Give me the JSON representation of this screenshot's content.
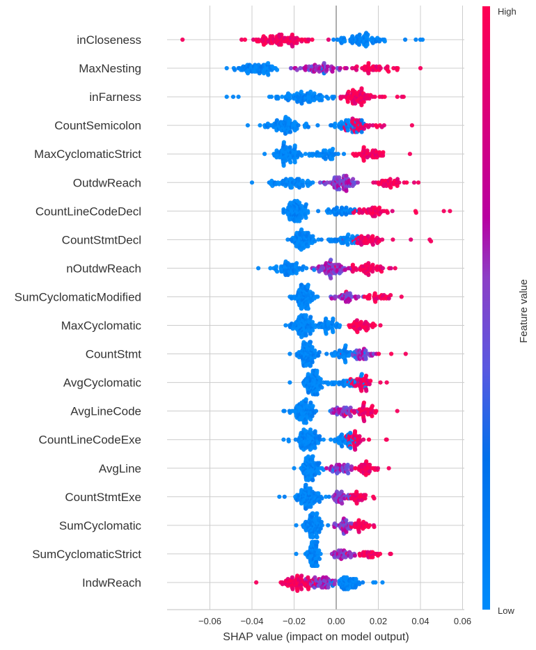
{
  "chart_data": {
    "type": "scatter",
    "subtype": "shap-beeswarm-summary",
    "title": "",
    "xlabel": "SHAP value (impact on model output)",
    "ylabel": "",
    "xlim": [
      -0.08,
      0.06
    ],
    "xticks": [
      -0.06,
      -0.04,
      -0.02,
      0.0,
      0.02,
      0.04,
      0.06
    ],
    "xtick_labels": [
      "−0.06",
      "−0.04",
      "−0.02",
      "0.00",
      "0.02",
      "0.04",
      "0.06"
    ],
    "grid": true,
    "colorbar": {
      "title": "Feature value",
      "high_label": "High",
      "low_label": "Low",
      "high_color": "#ff0052",
      "mid_color": "#b800a0",
      "low_color": "#008bfb",
      "placement": "right"
    },
    "features": [
      {
        "name": "inCloseness",
        "min": -0.073,
        "max": 0.041,
        "clusters": [
          {
            "center": -0.026,
            "spread": 0.012,
            "n": 90,
            "color": "high"
          },
          {
            "center": 0.011,
            "spread": 0.01,
            "n": 70,
            "color": "low"
          }
        ],
        "direction": "negative"
      },
      {
        "name": "MaxNesting",
        "min": -0.052,
        "max": 0.04,
        "clusters": [
          {
            "center": -0.037,
            "spread": 0.008,
            "n": 70,
            "color": "low"
          },
          {
            "center": -0.008,
            "spread": 0.012,
            "n": 50,
            "color": "mid"
          },
          {
            "center": 0.018,
            "spread": 0.012,
            "n": 40,
            "color": "high"
          }
        ],
        "direction": "positive"
      },
      {
        "name": "inFarness",
        "min": -0.052,
        "max": 0.032,
        "clusters": [
          {
            "center": -0.015,
            "spread": 0.012,
            "n": 80,
            "color": "low"
          },
          {
            "center": 0.01,
            "spread": 0.008,
            "n": 70,
            "color": "high"
          }
        ],
        "direction": "positive"
      },
      {
        "name": "CountSemicolon",
        "min": -0.042,
        "max": 0.036,
        "clusters": [
          {
            "center": -0.024,
            "spread": 0.008,
            "n": 80,
            "color": "low"
          },
          {
            "center": 0.005,
            "spread": 0.008,
            "n": 40,
            "color": "low"
          },
          {
            "center": 0.012,
            "spread": 0.006,
            "n": 40,
            "color": "high"
          }
        ],
        "direction": "positive"
      },
      {
        "name": "MaxCyclomaticStrict",
        "min": -0.034,
        "max": 0.035,
        "clusters": [
          {
            "center": -0.023,
            "spread": 0.006,
            "n": 80,
            "color": "low"
          },
          {
            "center": -0.005,
            "spread": 0.008,
            "n": 40,
            "color": "low"
          },
          {
            "center": 0.015,
            "spread": 0.008,
            "n": 45,
            "color": "high"
          }
        ],
        "direction": "positive"
      },
      {
        "name": "OutdwReach",
        "min": -0.04,
        "max": 0.039,
        "clusters": [
          {
            "center": -0.022,
            "spread": 0.009,
            "n": 60,
            "color": "low"
          },
          {
            "center": 0.002,
            "spread": 0.008,
            "n": 70,
            "color": "mid"
          },
          {
            "center": 0.025,
            "spread": 0.008,
            "n": 35,
            "color": "high"
          }
        ],
        "direction": "positive"
      },
      {
        "name": "CountLineCodeDecl",
        "min": -0.025,
        "max": 0.054,
        "clusters": [
          {
            "center": -0.019,
            "spread": 0.005,
            "n": 90,
            "color": "low"
          },
          {
            "center": 0.003,
            "spread": 0.008,
            "n": 40,
            "color": "low"
          },
          {
            "center": 0.018,
            "spread": 0.007,
            "n": 40,
            "color": "high"
          }
        ],
        "direction": "positive"
      },
      {
        "name": "CountStmtDecl",
        "min": -0.023,
        "max": 0.045,
        "clusters": [
          {
            "center": -0.016,
            "spread": 0.005,
            "n": 80,
            "color": "low"
          },
          {
            "center": 0.003,
            "spread": 0.008,
            "n": 40,
            "color": "low"
          },
          {
            "center": 0.015,
            "spread": 0.006,
            "n": 40,
            "color": "high"
          }
        ],
        "direction": "positive"
      },
      {
        "name": "nOutdwReach",
        "min": -0.037,
        "max": 0.028,
        "clusters": [
          {
            "center": -0.022,
            "spread": 0.007,
            "n": 60,
            "color": "low"
          },
          {
            "center": -0.002,
            "spread": 0.007,
            "n": 70,
            "color": "mid"
          },
          {
            "center": 0.015,
            "spread": 0.007,
            "n": 45,
            "color": "high"
          }
        ],
        "direction": "positive"
      },
      {
        "name": "SumCyclomaticModified",
        "min": -0.022,
        "max": 0.031,
        "clusters": [
          {
            "center": -0.015,
            "spread": 0.004,
            "n": 90,
            "color": "low"
          },
          {
            "center": 0.005,
            "spread": 0.007,
            "n": 35,
            "color": "mid"
          },
          {
            "center": 0.02,
            "spread": 0.006,
            "n": 25,
            "color": "high"
          }
        ],
        "direction": "positive"
      },
      {
        "name": "MaxCyclomatic",
        "min": -0.024,
        "max": 0.021,
        "clusters": [
          {
            "center": -0.016,
            "spread": 0.005,
            "n": 90,
            "color": "low"
          },
          {
            "center": -0.004,
            "spread": 0.005,
            "n": 40,
            "color": "low"
          },
          {
            "center": 0.012,
            "spread": 0.005,
            "n": 40,
            "color": "high"
          }
        ],
        "direction": "positive"
      },
      {
        "name": "CountStmt",
        "min": -0.022,
        "max": 0.033,
        "clusters": [
          {
            "center": -0.014,
            "spread": 0.004,
            "n": 90,
            "color": "low"
          },
          {
            "center": 0.004,
            "spread": 0.006,
            "n": 40,
            "color": "low"
          },
          {
            "center": 0.013,
            "spread": 0.005,
            "n": 35,
            "color": "mid"
          }
        ],
        "direction": "positive"
      },
      {
        "name": "AvgCyclomatic",
        "min": -0.022,
        "max": 0.024,
        "clusters": [
          {
            "center": -0.011,
            "spread": 0.004,
            "n": 90,
            "color": "low"
          },
          {
            "center": 0.005,
            "spread": 0.006,
            "n": 30,
            "color": "low"
          },
          {
            "center": 0.012,
            "spread": 0.005,
            "n": 40,
            "color": "high"
          }
        ],
        "direction": "positive"
      },
      {
        "name": "AvgLineCode",
        "min": -0.025,
        "max": 0.029,
        "clusters": [
          {
            "center": -0.015,
            "spread": 0.005,
            "n": 90,
            "color": "low"
          },
          {
            "center": 0.003,
            "spread": 0.006,
            "n": 40,
            "color": "mid"
          },
          {
            "center": 0.014,
            "spread": 0.005,
            "n": 40,
            "color": "high"
          }
        ],
        "direction": "positive"
      },
      {
        "name": "CountLineCodeExe",
        "min": -0.025,
        "max": 0.024,
        "clusters": [
          {
            "center": -0.013,
            "spread": 0.005,
            "n": 90,
            "color": "low"
          },
          {
            "center": 0.004,
            "spread": 0.005,
            "n": 40,
            "color": "low"
          },
          {
            "center": 0.009,
            "spread": 0.004,
            "n": 30,
            "color": "high"
          }
        ],
        "direction": "positive"
      },
      {
        "name": "AvgLine",
        "min": -0.02,
        "max": 0.025,
        "clusters": [
          {
            "center": -0.012,
            "spread": 0.005,
            "n": 90,
            "color": "low"
          },
          {
            "center": 0.002,
            "spread": 0.005,
            "n": 40,
            "color": "mid"
          },
          {
            "center": 0.014,
            "spread": 0.005,
            "n": 40,
            "color": "high"
          }
        ],
        "direction": "positive"
      },
      {
        "name": "CountStmtExe",
        "min": -0.027,
        "max": 0.018,
        "clusters": [
          {
            "center": -0.013,
            "spread": 0.005,
            "n": 90,
            "color": "low"
          },
          {
            "center": 0.003,
            "spread": 0.004,
            "n": 35,
            "color": "mid"
          },
          {
            "center": 0.01,
            "spread": 0.004,
            "n": 30,
            "color": "high"
          }
        ],
        "direction": "positive"
      },
      {
        "name": "SumCyclomatic",
        "min": -0.019,
        "max": 0.018,
        "clusters": [
          {
            "center": -0.011,
            "spread": 0.004,
            "n": 90,
            "color": "low"
          },
          {
            "center": 0.003,
            "spread": 0.004,
            "n": 35,
            "color": "mid"
          },
          {
            "center": 0.012,
            "spread": 0.004,
            "n": 30,
            "color": "high"
          }
        ],
        "direction": "positive"
      },
      {
        "name": "SumCyclomaticStrict",
        "min": -0.019,
        "max": 0.026,
        "clusters": [
          {
            "center": -0.011,
            "spread": 0.003,
            "n": 90,
            "color": "low"
          },
          {
            "center": 0.004,
            "spread": 0.005,
            "n": 35,
            "color": "mid"
          },
          {
            "center": 0.016,
            "spread": 0.005,
            "n": 25,
            "color": "high"
          }
        ],
        "direction": "positive"
      },
      {
        "name": "IndwReach",
        "min": -0.038,
        "max": 0.022,
        "clusters": [
          {
            "center": -0.018,
            "spread": 0.009,
            "n": 70,
            "color": "high"
          },
          {
            "center": -0.006,
            "spread": 0.006,
            "n": 50,
            "color": "mid"
          },
          {
            "center": 0.005,
            "spread": 0.006,
            "n": 60,
            "color": "low"
          }
        ],
        "direction": "negative"
      }
    ]
  }
}
